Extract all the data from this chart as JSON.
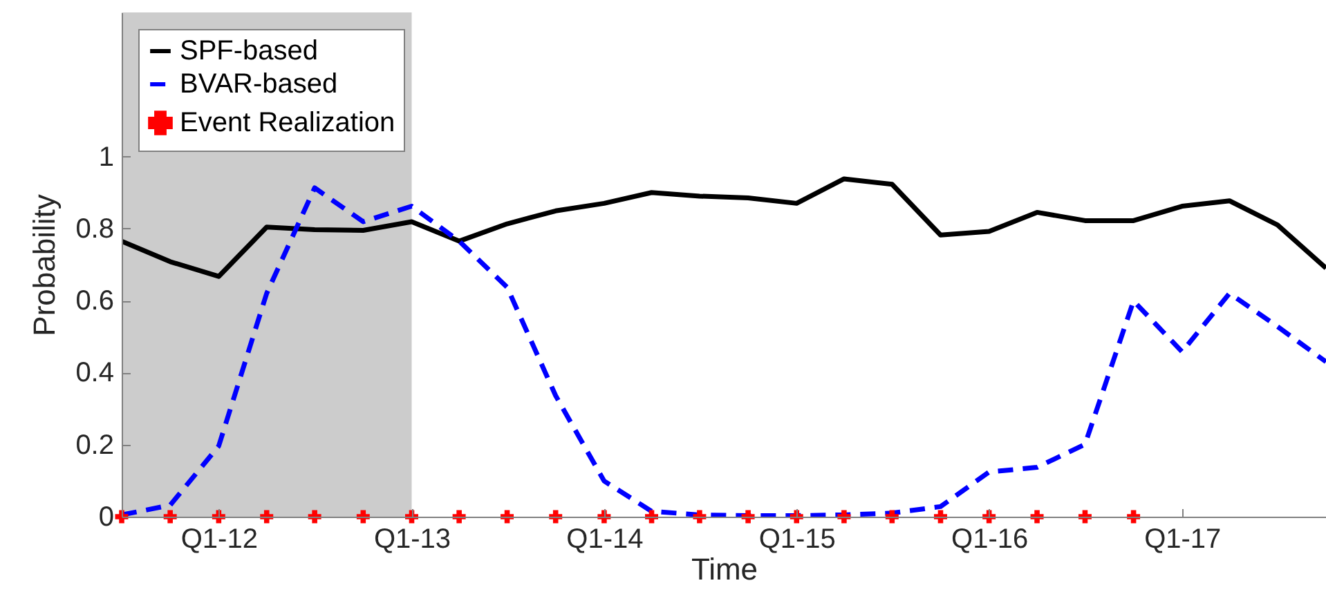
{
  "chart_data": {
    "type": "line",
    "xlabel": "Time",
    "ylabel": "Probability",
    "xlim": [
      "2011-07",
      "2017-10"
    ],
    "ylim": [
      0,
      1.4
    ],
    "xticks": [
      {
        "value": "2012-01",
        "label": "Q1-12"
      },
      {
        "value": "2013-01",
        "label": "Q1-13"
      },
      {
        "value": "2014-01",
        "label": "Q1-14"
      },
      {
        "value": "2015-01",
        "label": "Q1-15"
      },
      {
        "value": "2016-01",
        "label": "Q1-16"
      },
      {
        "value": "2017-01",
        "label": "Q1-17"
      }
    ],
    "yticks": [
      0,
      0.2,
      0.4,
      0.6,
      0.8,
      1
    ],
    "x": [
      "2011-07",
      "2011-10",
      "2012-01",
      "2012-04",
      "2012-07",
      "2012-10",
      "2013-01",
      "2013-04",
      "2013-07",
      "2013-10",
      "2014-01",
      "2014-04",
      "2014-07",
      "2014-10",
      "2015-01",
      "2015-04",
      "2015-07",
      "2015-10",
      "2016-01",
      "2016-04",
      "2016-07",
      "2016-10",
      "2017-01",
      "2017-04",
      "2017-07",
      "2017-10"
    ],
    "series": [
      {
        "name": "SPF-based",
        "color": "#000000",
        "line_style": "solid",
        "values": [
          0.765,
          0.708,
          0.667,
          0.804,
          0.797,
          0.795,
          0.819,
          0.765,
          0.813,
          0.849,
          0.87,
          0.9,
          0.89,
          0.885,
          0.87,
          0.938,
          0.923,
          0.782,
          0.792,
          0.845,
          0.822,
          0.822,
          0.862,
          0.877,
          0.81,
          0.69
        ]
      },
      {
        "name": "BVAR-based",
        "color": "#0000ff",
        "line_style": "dashed",
        "values": [
          0.005,
          0.032,
          0.196,
          0.62,
          0.913,
          0.819,
          0.862,
          0.765,
          0.637,
          0.336,
          0.099,
          0.015,
          0.005,
          0.003,
          0.003,
          0.005,
          0.01,
          0.028,
          0.124,
          0.137,
          0.201,
          0.599,
          0.458,
          0.62,
          0.528,
          0.43
        ]
      },
      {
        "name": "Event Realization",
        "type": "scatter",
        "marker": "cross",
        "color": "#ff0000",
        "x": [
          "2011-07",
          "2011-10",
          "2012-01",
          "2012-04",
          "2012-07",
          "2012-10",
          "2013-01",
          "2013-04",
          "2013-07",
          "2013-10",
          "2014-01",
          "2014-04",
          "2014-07",
          "2014-10",
          "2015-01",
          "2015-04",
          "2015-07",
          "2015-10",
          "2016-01",
          "2016-04",
          "2016-07",
          "2016-10"
        ],
        "values": [
          0,
          0,
          0,
          0,
          0,
          0,
          0,
          0,
          0,
          0,
          0,
          0,
          0,
          0,
          0,
          0,
          0,
          0,
          0,
          0,
          0,
          0
        ]
      }
    ],
    "bands": [
      {
        "axis": "x",
        "from": "2011-07",
        "to": "2013-01",
        "color": "#cccccc"
      }
    ],
    "legend": "top left",
    "grid": false
  }
}
